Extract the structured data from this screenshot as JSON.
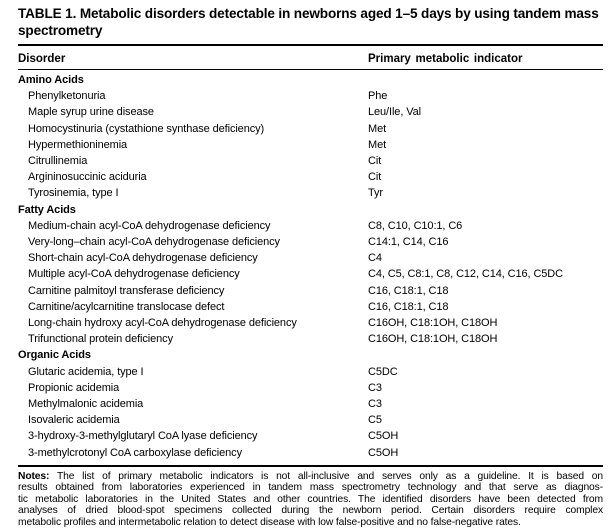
{
  "title": "TABLE 1. Metabolic disorders detectable in newborns aged 1–5 days by using tandem mass spectrometry",
  "columns": [
    "Disorder",
    "Primary metabolic indicator"
  ],
  "sections": [
    {
      "name": "Amino Acids",
      "rows": [
        {
          "disorder": "Phenylketonuria",
          "indicator": "Phe"
        },
        {
          "disorder": "Maple syrup urine disease",
          "indicator": "Leu/Ile, Val"
        },
        {
          "disorder": "Homocystinuria (cystathione synthase deficiency)",
          "indicator": "Met"
        },
        {
          "disorder": "Hypermethioninemia",
          "indicator": "Met"
        },
        {
          "disorder": "Citrullinemia",
          "indicator": "Cit"
        },
        {
          "disorder": "Argininosuccinic aciduria",
          "indicator": "Cit"
        },
        {
          "disorder": "Tyrosinemia, type I",
          "indicator": "Tyr"
        }
      ]
    },
    {
      "name": "Fatty Acids",
      "rows": [
        {
          "disorder": "Medium-chain acyl-CoA dehydrogenase deficiency",
          "indicator": "C8, C10, C10:1, C6"
        },
        {
          "disorder": "Very-long–chain acyl-CoA dehydrogenase deficiency",
          "indicator": "C14:1, C14, C16"
        },
        {
          "disorder": "Short-chain acyl-CoA dehydrogenase deficiency",
          "indicator": "C4"
        },
        {
          "disorder": "Multiple acyl-CoA dehydrogenase deficiency",
          "indicator": "C4, C5, C8:1, C8, C12, C14, C16, C5DC"
        },
        {
          "disorder": "Carnitine palmitoyl transferase deficiency",
          "indicator": "C16, C18:1, C18"
        },
        {
          "disorder": "Carnitine/acylcarnitine translocase defect",
          "indicator": "C16, C18:1, C18"
        },
        {
          "disorder": "Long-chain hydroxy acyl-CoA dehydrogenase deficiency",
          "indicator": "C16OH, C18:1OH, C18OH"
        },
        {
          "disorder": "Trifunctional protein deficiency",
          "indicator": "C16OH, C18:1OH, C18OH"
        }
      ]
    },
    {
      "name": "Organic Acids",
      "rows": [
        {
          "disorder": "Glutaric acidemia, type I",
          "indicator": "C5DC"
        },
        {
          "disorder": "Propionic acidemia",
          "indicator": "C3"
        },
        {
          "disorder": "Methylmalonic acidemia",
          "indicator": "C3"
        },
        {
          "disorder": "Isovaleric acidemia",
          "indicator": "C5"
        },
        {
          "disorder": "3-hydroxy-3-methylglutaryl CoA lyase deficiency",
          "indicator": "C5OH"
        },
        {
          "disorder": "3-methylcrotonyl CoA carboxylase deficiency",
          "indicator": "C5OH"
        }
      ]
    }
  ],
  "notes": {
    "label": "Notes:",
    "lines": [
      " The list of primary metabolic indicators is not all-inclusive and serves only as a guideline. It is based on",
      "results obtained from laboratories experienced in tandem mass spectrometry technology and that serve as diagnos-",
      "tic metabolic laboratories in the United States and other countries. The identified disorders have been detected from",
      "analyses of dried blood-spot specimens collected during the newborn period. Certain disorders require complex",
      "metabolic profiles and intermetabolic relation to detect disease with low false-positive and no false-negative rates."
    ]
  }
}
